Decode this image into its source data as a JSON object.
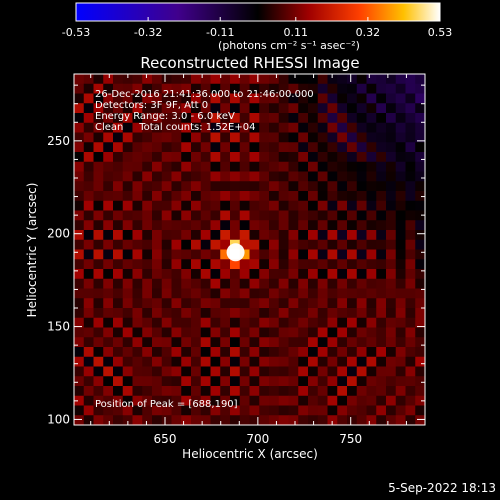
{
  "colorbar": {
    "ticks": [
      "-0.53",
      "-0.32",
      "-0.11",
      "0.11",
      "0.32",
      "0.53"
    ],
    "range": [
      -0.53,
      0.53
    ],
    "unit_label": "(photons cm⁻² s⁻¹ asec⁻²)"
  },
  "title": "Reconstructed RHESSI Image",
  "info": {
    "line1": "26-Dec-2016 21:41:36.000 to 21:46:00.000",
    "line2": "Detectors: 3F 9F, Att 0",
    "line3": "Energy Range: 3.0 - 6.0 keV",
    "line4": "Clean     Total counts: 1.52E+04"
  },
  "peak_label": "Position of Peak = [688,190]",
  "footer": {
    "timestamp": "5-Sep-2022 18:13"
  },
  "chart_data": {
    "type": "heatmap",
    "title": "Reconstructed RHESSI Image",
    "xlabel": "Heliocentric X (arcsec)",
    "ylabel": "Heliocentric Y (arcsec)",
    "xlim": [
      601,
      790
    ],
    "ylim": [
      97,
      286
    ],
    "xticks": [
      650,
      700,
      750
    ],
    "yticks": [
      100,
      150,
      200,
      250
    ],
    "peak": {
      "x": 688,
      "y": 190,
      "value": 0.53
    },
    "value_range": [
      -0.53,
      0.53
    ],
    "background_level": 0.08,
    "colormap": [
      "#0000ff",
      "#40008c",
      "#000000",
      "#a00000",
      "#ff4000",
      "#ffc000",
      "#ffffff"
    ]
  }
}
